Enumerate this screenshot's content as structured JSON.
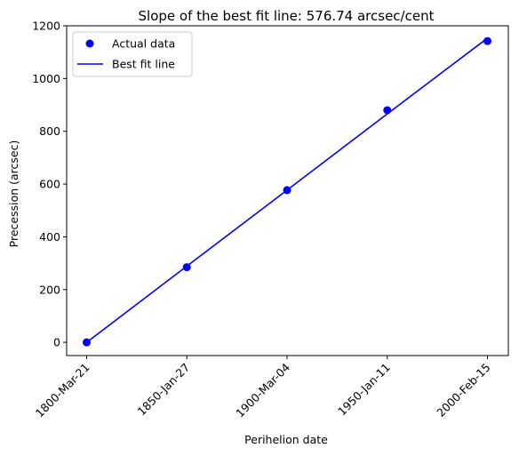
{
  "chart_data": {
    "type": "scatter",
    "title": "Slope of the best fit line: 576.74 arcsec/cent",
    "xlabel": "Perihelion date",
    "ylabel": "Precession (arcsec)",
    "x": [
      "1800-Mar-21",
      "1850-Jan-27",
      "1900-Mar-04",
      "1950-Jan-11",
      "2000-Feb-15"
    ],
    "xticks": [
      "1800-Mar-21",
      "1850-Jan-27",
      "1900-Mar-04",
      "1950-Jan-11",
      "2000-Feb-15"
    ],
    "ylim": [
      -50,
      1200
    ],
    "yticks": [
      0,
      200,
      400,
      600,
      800,
      1000,
      1200
    ],
    "grid": false,
    "legend_position": "top-left",
    "series": [
      {
        "name": "Actual data",
        "kind": "scatter",
        "color": "#0000ff",
        "values": [
          0,
          285,
          577,
          880,
          1142
        ]
      },
      {
        "name": "Best fit line",
        "kind": "line",
        "color": "#0000ff",
        "values": [
          0,
          289,
          577,
          866,
          1153
        ]
      }
    ]
  }
}
